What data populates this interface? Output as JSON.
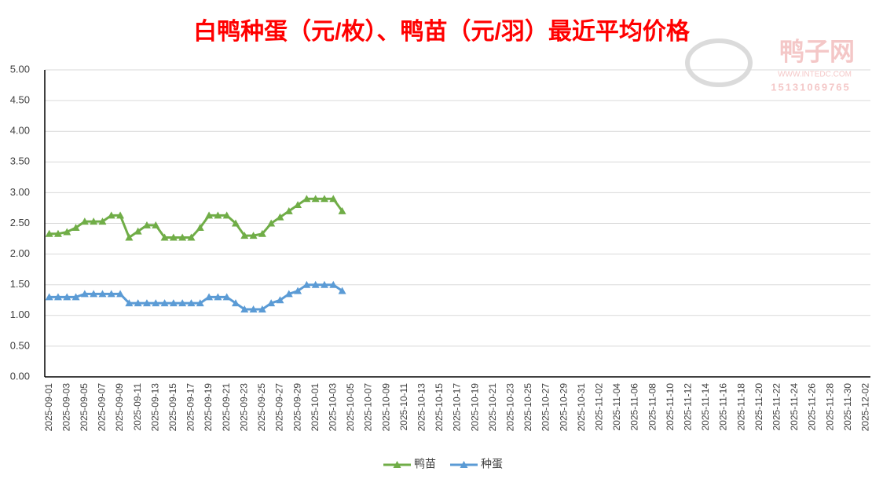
{
  "chart_data": {
    "type": "line",
    "title": "白鸭种蛋（元/枚）、鸭苗（元/羽）最近平均价格",
    "watermark": {
      "name": "鸭子网",
      "site": "WWW.INTEDC.COM",
      "phone": "15131069765"
    },
    "categories": [
      "2025-09-01",
      null,
      "2025-09-03",
      null,
      "2025-09-05",
      null,
      "2025-09-07",
      null,
      "2025-09-09",
      null,
      "2025-09-11",
      null,
      "2025-09-13",
      null,
      "2025-09-15",
      null,
      "2025-09-17",
      null,
      "2025-09-19",
      null,
      "2025-09-21",
      null,
      "2025-09-23",
      null,
      "2025-09-25",
      null,
      "2025-09-27",
      null,
      "2025-09-29",
      null,
      "2025-10-01",
      null,
      "2025-10-03",
      null,
      "2025-10-05",
      null,
      "2025-10-07",
      null,
      "2025-10-09",
      null,
      "2025-10-11",
      null,
      "2025-10-13",
      null,
      "2025-10-15",
      null,
      "2025-10-17",
      null,
      "2025-10-19",
      null,
      "2025-10-21",
      null,
      "2025-10-23",
      null,
      "2025-10-25",
      null,
      "2025-10-27",
      null,
      "2025-10-29",
      null,
      "2025-10-31",
      null,
      "2025-11-02",
      null,
      "2025-11-04",
      null,
      "2025-11-06",
      null,
      "2025-11-08",
      null,
      "2025-11-10",
      null,
      "2025-11-12",
      null,
      "2025-11-14",
      null,
      "2025-11-16",
      null,
      "2025-11-18",
      null,
      "2025-11-20",
      null,
      "2025-11-22",
      null,
      "2025-11-24",
      null,
      "2025-11-26",
      null,
      "2025-11-28",
      null,
      "2025-11-30",
      null,
      "2025-12-02"
    ],
    "series": [
      {
        "name": "鸭苗",
        "color": "#70ad47",
        "values": [
          2.33,
          2.33,
          2.36,
          2.43,
          2.53,
          2.53,
          2.53,
          2.63,
          2.63,
          2.27,
          2.37,
          2.47,
          2.47,
          2.27,
          2.27,
          2.27,
          2.27,
          2.43,
          2.63,
          2.63,
          2.63,
          2.5,
          2.3,
          2.3,
          2.33,
          2.5,
          2.6,
          2.7,
          2.8,
          2.9,
          2.9,
          2.9,
          2.9,
          2.7,
          null,
          null,
          null,
          null,
          null,
          null,
          null,
          null,
          null,
          null,
          null,
          null,
          null,
          null,
          null,
          null,
          null,
          null,
          null,
          null,
          null,
          null,
          null,
          null,
          null,
          null,
          null,
          null,
          null,
          null,
          null,
          null,
          null,
          null,
          null,
          null,
          null,
          null,
          null,
          null,
          null,
          null,
          null,
          null,
          null,
          null,
          null,
          null,
          null,
          null,
          null,
          null,
          null,
          null,
          null,
          null,
          null,
          null,
          null
        ]
      },
      {
        "name": "种蛋",
        "color": "#5b9bd5",
        "values": [
          1.3,
          1.3,
          1.3,
          1.3,
          1.35,
          1.35,
          1.35,
          1.35,
          1.35,
          1.2,
          1.2,
          1.2,
          1.2,
          1.2,
          1.2,
          1.2,
          1.2,
          1.2,
          1.3,
          1.3,
          1.3,
          1.2,
          1.1,
          1.1,
          1.1,
          1.2,
          1.25,
          1.35,
          1.4,
          1.5,
          1.5,
          1.5,
          1.5,
          1.4,
          null,
          null,
          null,
          null,
          null,
          null,
          null,
          null,
          null,
          null,
          null,
          null,
          null,
          null,
          null,
          null,
          null,
          null,
          null,
          null,
          null,
          null,
          null,
          null,
          null,
          null,
          null,
          null,
          null,
          null,
          null,
          null,
          null,
          null,
          null,
          null,
          null,
          null,
          null,
          null,
          null,
          null,
          null,
          null,
          null,
          null,
          null,
          null,
          null,
          null,
          null,
          null,
          null,
          null,
          null,
          null,
          null,
          null,
          null
        ]
      }
    ],
    "ylim": [
      0,
      5
    ],
    "yticks": [
      {
        "value": 0,
        "label": "0.00"
      },
      {
        "value": 0.5,
        "label": "0.50"
      },
      {
        "value": 1,
        "label": "1.00"
      },
      {
        "value": 1.5,
        "label": "1.50"
      },
      {
        "value": 2,
        "label": "2.00"
      },
      {
        "value": 2.5,
        "label": "2.50"
      },
      {
        "value": 3,
        "label": "3.00"
      },
      {
        "value": 3.5,
        "label": "3.50"
      },
      {
        "value": 4,
        "label": "4.00"
      },
      {
        "value": 4.5,
        "label": "4.50"
      },
      {
        "value": 5,
        "label": "5.00"
      }
    ],
    "grid": true,
    "legend": "bottom"
  }
}
